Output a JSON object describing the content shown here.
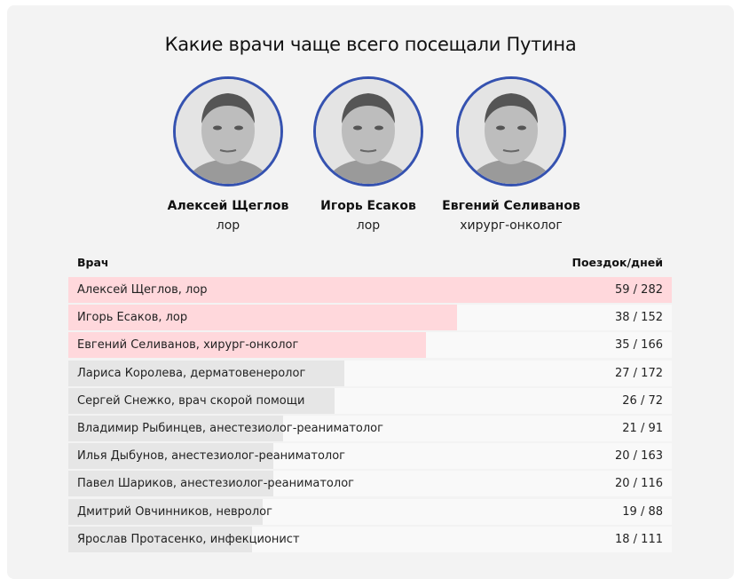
{
  "title": "Какие врачи чаще всего посещали Путина",
  "featured": [
    {
      "name": "Алексей Щеглов",
      "role": "лор"
    },
    {
      "name": "Игорь Есаков",
      "role": "лор"
    },
    {
      "name": "Евгений Селиванов",
      "role": "хирург-онколог"
    }
  ],
  "colors": {
    "highlight": "#ffd8dc",
    "default": "#e6e6e6",
    "ring": "#3552b0"
  },
  "chart_data": {
    "type": "bar",
    "orientation": "horizontal",
    "columns": [
      "Врач",
      "Поездок/дней"
    ],
    "categories": [
      "Алексей Щеглов, лор",
      "Игорь Есаков, лор",
      "Евгений Селиванов, хирург-онколог",
      "Лариса Королева, дерматовенеролог",
      "Сергей Снежко, врач скорой помощи",
      "Владимир Рыбинцев, анестезиолог-реаниматолог",
      "Илья Дыбунов, анестезиолог-реаниматолог",
      "Павел Шариков, анестезиолог-реаниматолог",
      "Дмитрий Овчинников, невролог",
      "Ярослав Протасенко, инфекционист"
    ],
    "trips": [
      59,
      38,
      35,
      27,
      26,
      21,
      20,
      20,
      19,
      18
    ],
    "days": [
      282,
      152,
      166,
      172,
      72,
      91,
      163,
      116,
      88,
      111
    ],
    "labels": [
      "59 / 282",
      "38 / 152",
      "35 / 166",
      "27 / 172",
      "26 / 72",
      "21 / 91",
      "20 / 163",
      "20 / 116",
      "19 / 88",
      "18 / 111"
    ],
    "highlighted": [
      true,
      true,
      true,
      false,
      false,
      false,
      false,
      false,
      false,
      false
    ]
  }
}
